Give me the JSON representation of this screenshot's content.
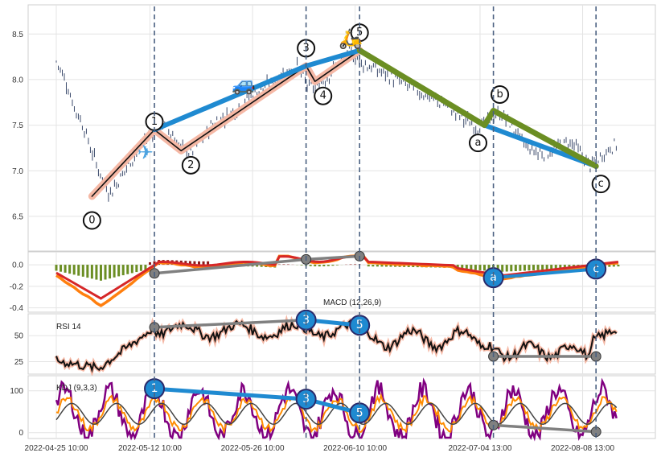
{
  "chart_data": {
    "type": "candlestick",
    "title": "",
    "x_tick_labels": [
      "2022-04-25 10:00",
      "2022-05-12 10:00",
      "2022-05-26 10:00",
      "2022-06-10 10:00",
      "2022-07-04 13:00",
      "2022-08-08 13:00"
    ],
    "price_panel": {
      "ylim": [
        6.12,
        8.82
      ],
      "y_ticks": [
        "6.5",
        "7.0",
        "7.5",
        "8.0",
        "8.5"
      ],
      "series_close_approx": [
        [
          0,
          8.2
        ],
        [
          4,
          8.0
        ],
        [
          8,
          7.7
        ],
        [
          12,
          7.5
        ],
        [
          16,
          7.2
        ],
        [
          20,
          6.95
        ],
        [
          24,
          6.75
        ],
        [
          28,
          6.9
        ],
        [
          32,
          7.05
        ],
        [
          36,
          7.2
        ],
        [
          40,
          7.35
        ],
        [
          44,
          7.45
        ],
        [
          48,
          7.5
        ],
        [
          52,
          7.4
        ],
        [
          56,
          7.25
        ],
        [
          60,
          7.2
        ],
        [
          64,
          7.3
        ],
        [
          68,
          7.45
        ],
        [
          72,
          7.55
        ],
        [
          76,
          7.6
        ],
        [
          80,
          7.65
        ],
        [
          84,
          7.75
        ],
        [
          88,
          7.85
        ],
        [
          92,
          7.9
        ],
        [
          96,
          7.95
        ],
        [
          100,
          8.05
        ],
        [
          104,
          8.1
        ],
        [
          108,
          8.15
        ],
        [
          112,
          7.95
        ],
        [
          116,
          7.9
        ],
        [
          120,
          8.0
        ],
        [
          124,
          8.1
        ],
        [
          128,
          8.2
        ],
        [
          132,
          8.3
        ],
        [
          136,
          8.2
        ],
        [
          140,
          8.15
        ],
        [
          144,
          8.1
        ],
        [
          148,
          8.05
        ],
        [
          152,
          8.0
        ],
        [
          156,
          7.95
        ],
        [
          160,
          7.9
        ],
        [
          164,
          7.85
        ],
        [
          168,
          7.8
        ],
        [
          172,
          7.75
        ],
        [
          176,
          7.7
        ],
        [
          180,
          7.62
        ],
        [
          184,
          7.55
        ],
        [
          188,
          7.48
        ],
        [
          192,
          7.5
        ],
        [
          196,
          7.6
        ],
        [
          200,
          7.62
        ],
        [
          204,
          7.5
        ],
        [
          208,
          7.35
        ],
        [
          212,
          7.25
        ],
        [
          216,
          7.2
        ],
        [
          220,
          7.2
        ],
        [
          224,
          7.25
        ],
        [
          228,
          7.3
        ],
        [
          232,
          7.3
        ],
        [
          236,
          7.15
        ],
        [
          240,
          7.05
        ],
        [
          244,
          7.15
        ],
        [
          248,
          7.25
        ],
        [
          252,
          7.3
        ]
      ],
      "wave_points": [
        {
          "label": "0",
          "x": 16,
          "price": 6.72
        },
        {
          "label": "1",
          "x": 44,
          "price": 7.45
        },
        {
          "label": "2",
          "x": 56,
          "price": 7.22
        },
        {
          "label": "3",
          "x": 112,
          "price": 8.15
        },
        {
          "label": "4",
          "x": 116,
          "price": 7.98
        },
        {
          "label": "5",
          "x": 136,
          "price": 8.32
        },
        {
          "label": "a",
          "x": 192,
          "price": 7.5
        },
        {
          "label": "b",
          "x": 196,
          "price": 7.66
        },
        {
          "label": "c",
          "x": 242,
          "price": 7.05
        }
      ],
      "emoji_markers": [
        {
          "name": "airplane",
          "glyph": "✈",
          "x": 40,
          "price": 7.2
        },
        {
          "name": "car",
          "glyph": "🚙",
          "x": 84,
          "price": 7.95
        },
        {
          "name": "scooter",
          "glyph": "🛵",
          "x": 132,
          "price": 8.45
        }
      ]
    },
    "macd_panel": {
      "label": "MACD (12,26,9)",
      "ylim": [
        -0.44,
        0.12
      ],
      "y_ticks": [
        "0.0",
        "-0.2",
        "-0.4"
      ],
      "divergence_points": [
        {
          "x": 44,
          "value": -0.08,
          "label": ""
        },
        {
          "x": 112,
          "value": 0.05,
          "label": ""
        },
        {
          "x": 136,
          "value": 0.08,
          "label": ""
        },
        {
          "x": 196,
          "value": -0.12,
          "label": "a"
        },
        {
          "x": 242,
          "value": -0.04,
          "label": "c"
        }
      ]
    },
    "rsi_panel": {
      "label": "RSI 14",
      "ylim": [
        13,
        71
      ],
      "y_ticks": [
        "25",
        "50"
      ],
      "divergence_points": [
        {
          "x": 44,
          "value": 58,
          "label": ""
        },
        {
          "x": 112,
          "value": 65,
          "label": "3"
        },
        {
          "x": 136,
          "value": 60,
          "label": "5"
        },
        {
          "x": 196,
          "value": 30,
          "label": ""
        },
        {
          "x": 242,
          "value": 30,
          "label": ""
        }
      ]
    },
    "kdj_panel": {
      "label": "KDJ (9,3,3)",
      "ylim": [
        -14,
        136
      ],
      "y_ticks": [
        "0",
        "100"
      ],
      "divergence_points": [
        {
          "x": 44,
          "value": 105,
          "label": "1"
        },
        {
          "x": 112,
          "value": 80,
          "label": "3"
        },
        {
          "x": 136,
          "value": 47,
          "label": "5"
        },
        {
          "x": 196,
          "value": 18,
          "label": ""
        },
        {
          "x": 242,
          "value": 2,
          "label": ""
        }
      ]
    },
    "vertical_markers_x": [
      44,
      112,
      136,
      196,
      242
    ],
    "x_range": [
      0,
      256
    ],
    "x_tick_positions": [
      0,
      42,
      88,
      134,
      190,
      236
    ],
    "colors": {
      "candle": "#3b4a6b",
      "wave_black": "#111111",
      "wave_fill": "#f5b8a5",
      "impulse_blue": "#1f8ad1",
      "correction_green": "#6b8e23",
      "macd_line": "#ff7f0e",
      "signal_line": "#d62728",
      "hist_pos": "#8b1a1a",
      "hist_neg": "#6b8e23",
      "rsi_line": "#111111",
      "rsi_glow": "#f5b8a5",
      "k_line": "#ff8c00",
      "d_line": "#444444",
      "j_line": "#800080",
      "div_gray": "#808080",
      "marker_dash": "#4a6080"
    },
    "grid": true
  }
}
